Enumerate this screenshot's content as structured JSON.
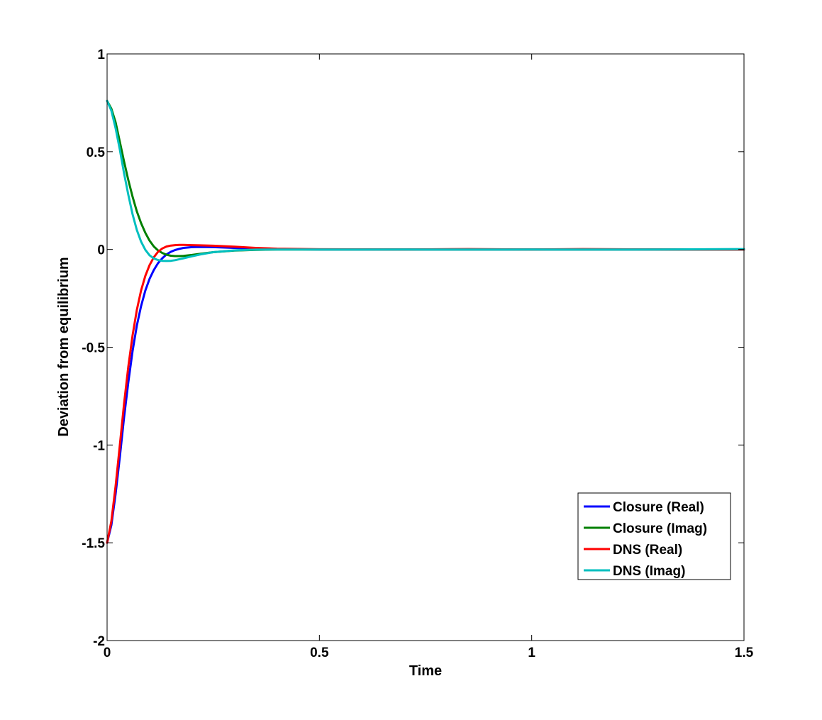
{
  "chart_data": {
    "type": "line",
    "title": "",
    "xlabel": "Time",
    "ylabel": "Deviation from equilibrium",
    "xlim": [
      0,
      1.5
    ],
    "ylim": [
      -2,
      1
    ],
    "xticks": [
      0,
      0.5,
      1,
      1.5
    ],
    "xtick_labels": [
      "0",
      "0.5",
      "1",
      "1.5"
    ],
    "yticks": [
      -2,
      -1.5,
      -1,
      -0.5,
      0,
      0.5,
      1
    ],
    "ytick_labels": [
      "-2",
      "-1.5",
      "-1",
      "-0.5",
      "0",
      "0.5",
      "1"
    ],
    "grid": false,
    "legend_position": "lower-right",
    "series": [
      {
        "name": "Closure (Real)",
        "color": "#0000ff",
        "x": [
          0,
          0.01,
          0.02,
          0.03,
          0.04,
          0.05,
          0.06,
          0.07,
          0.08,
          0.09,
          0.1,
          0.11,
          0.12,
          0.13,
          0.14,
          0.15,
          0.16,
          0.17,
          0.18,
          0.2,
          0.22,
          0.25,
          0.3,
          0.35,
          0.4,
          0.5,
          0.7,
          1.0,
          1.3,
          1.5
        ],
        "y": [
          -1.5,
          -1.41,
          -1.25,
          -1.06,
          -0.86,
          -0.68,
          -0.52,
          -0.39,
          -0.29,
          -0.21,
          -0.15,
          -0.105,
          -0.07,
          -0.045,
          -0.025,
          -0.012,
          -0.003,
          0.003,
          0.008,
          0.012,
          0.013,
          0.012,
          0.008,
          0.004,
          0.002,
          0.0,
          0.0,
          0.0,
          0.0,
          0.0
        ]
      },
      {
        "name": "Closure (Imag)",
        "color": "#008000",
        "x": [
          0,
          0.01,
          0.02,
          0.03,
          0.04,
          0.05,
          0.06,
          0.07,
          0.08,
          0.09,
          0.1,
          0.11,
          0.12,
          0.13,
          0.14,
          0.15,
          0.16,
          0.17,
          0.18,
          0.2,
          0.22,
          0.25,
          0.3,
          0.35,
          0.4,
          0.5,
          0.7,
          1.0,
          1.3,
          1.5
        ],
        "y": [
          0.76,
          0.72,
          0.65,
          0.55,
          0.45,
          0.355,
          0.27,
          0.195,
          0.135,
          0.085,
          0.045,
          0.015,
          -0.005,
          -0.018,
          -0.027,
          -0.032,
          -0.034,
          -0.034,
          -0.033,
          -0.028,
          -0.022,
          -0.014,
          -0.006,
          -0.002,
          0.0,
          0.0,
          0.0,
          0.0,
          0.0,
          0.0
        ]
      },
      {
        "name": "DNS (Real)",
        "color": "#ff0000",
        "x": [
          0,
          0.01,
          0.02,
          0.03,
          0.04,
          0.05,
          0.06,
          0.07,
          0.08,
          0.09,
          0.1,
          0.11,
          0.12,
          0.13,
          0.14,
          0.15,
          0.16,
          0.17,
          0.18,
          0.2,
          0.22,
          0.25,
          0.3,
          0.35,
          0.4,
          0.5,
          0.7,
          0.85,
          1.0,
          1.12,
          1.3,
          1.5
        ],
        "y": [
          -1.5,
          -1.39,
          -1.21,
          -1.0,
          -0.79,
          -0.6,
          -0.44,
          -0.31,
          -0.21,
          -0.135,
          -0.08,
          -0.04,
          -0.012,
          0.005,
          0.015,
          0.02,
          0.022,
          0.023,
          0.023,
          0.022,
          0.021,
          0.019,
          0.014,
          0.008,
          0.004,
          0.001,
          0.0,
          0.002,
          0.0,
          0.002,
          0.0,
          0.0
        ]
      },
      {
        "name": "DNS (Imag)",
        "color": "#00bfbf",
        "x": [
          0,
          0.01,
          0.02,
          0.03,
          0.04,
          0.05,
          0.06,
          0.07,
          0.08,
          0.09,
          0.1,
          0.11,
          0.12,
          0.13,
          0.14,
          0.15,
          0.16,
          0.17,
          0.18,
          0.2,
          0.22,
          0.25,
          0.3,
          0.35,
          0.4,
          0.5,
          0.7,
          1.0,
          1.3,
          1.49,
          1.5
        ],
        "y": [
          0.76,
          0.71,
          0.62,
          0.51,
          0.39,
          0.28,
          0.18,
          0.1,
          0.04,
          -0.002,
          -0.03,
          -0.046,
          -0.054,
          -0.058,
          -0.059,
          -0.058,
          -0.055,
          -0.05,
          -0.045,
          -0.035,
          -0.025,
          -0.014,
          -0.005,
          -0.001,
          0.0,
          0.0,
          0.0,
          0.0,
          0.0,
          0.002,
          0.002
        ]
      }
    ]
  }
}
